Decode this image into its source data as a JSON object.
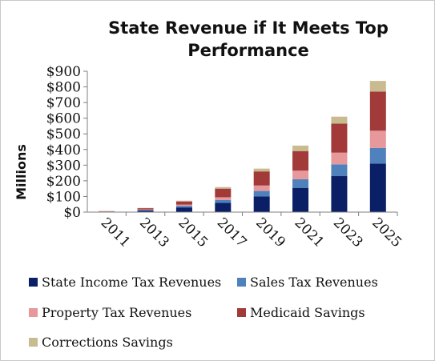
{
  "chart_data": {
    "type": "bar",
    "stacked": true,
    "title": "State Revenue if It Meets Top Performance",
    "title_lines": [
      "State Revenue if It Meets Top",
      "Performance"
    ],
    "ylabel": "Millions",
    "xlabel": "",
    "ylim": [
      0,
      900
    ],
    "yticks": [
      0,
      100,
      200,
      300,
      400,
      500,
      600,
      700,
      800,
      900
    ],
    "ytick_labels": [
      "$0",
      "$100",
      "$200",
      "$300",
      "$400",
      "$500",
      "$600",
      "$700",
      "$800",
      "$900"
    ],
    "grid": false,
    "legend_position": "bottom",
    "categories": [
      "2011",
      "2013",
      "2015",
      "2017",
      "2019",
      "2021",
      "2023",
      "2025"
    ],
    "series": [
      {
        "name": "State Income Tax Revenues",
        "color": "#0a1f66",
        "values": [
          2,
          10,
          30,
          60,
          100,
          155,
          230,
          310
        ]
      },
      {
        "name": "Sales Tax Revenues",
        "color": "#4f81bd",
        "values": [
          1,
          4,
          10,
          18,
          35,
          55,
          75,
          100
        ]
      },
      {
        "name": "Property Tax Revenues",
        "color": "#e6989a",
        "values": [
          1,
          3,
          8,
          17,
          35,
          55,
          75,
          110
        ]
      },
      {
        "name": "Medicaid Savings",
        "color": "#a33a3a",
        "values": [
          2,
          8,
          20,
          55,
          90,
          125,
          185,
          250
        ]
      },
      {
        "name": "Corrections Savings",
        "color": "#c8bb90",
        "values": [
          1,
          2,
          5,
          10,
          18,
          35,
          45,
          68
        ]
      }
    ]
  }
}
